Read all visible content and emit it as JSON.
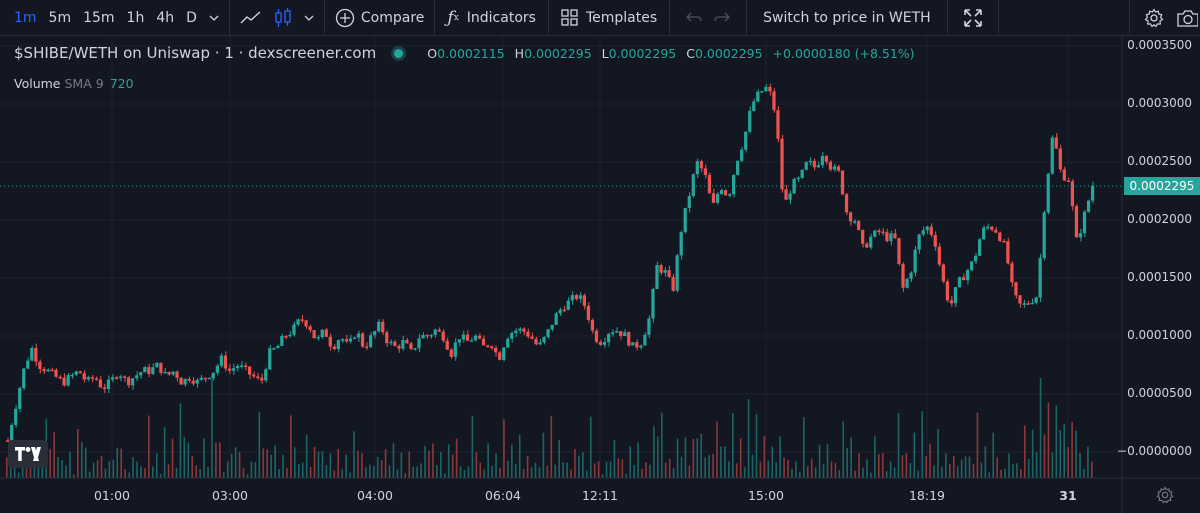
{
  "toolbar": {
    "intervals": [
      "1m",
      "5m",
      "15m",
      "1h",
      "4h",
      "D"
    ],
    "active_interval": "1m",
    "compare_label": "Compare",
    "indicators_label": "Indicators",
    "templates_label": "Templates",
    "switch_label": "Switch to price in WETH"
  },
  "legend": {
    "title": "$SHIBE/WETH on Uniswap · 1 · dexscreener.com",
    "o_key": "O",
    "o_val": "0.0002115",
    "h_key": "H",
    "h_val": "0.0002295",
    "l_key": "L",
    "l_val": "0.0002295",
    "c_key": "C",
    "c_val": "0.0002295",
    "change": "+0.0000180 (+8.51%)"
  },
  "volume": {
    "label": "Volume",
    "sma": "SMA 9",
    "value": "720"
  },
  "colors": {
    "up": "#26a69a",
    "down": "#ef5350",
    "background": "#131722",
    "grid": "#1e222d"
  },
  "chart_data": {
    "type": "candlestick",
    "title": "$SHIBE/WETH on Uniswap · 1 · dexscreener.com",
    "current_price": "0.0002295",
    "y_ticks": [
      "0.0003500",
      "0.0003000",
      "0.0002500",
      "0.0002000",
      "0.0001500",
      "0.0001000",
      "0.0000500",
      "−0.0000000"
    ],
    "x_ticks": [
      "01:00",
      "03:00",
      "04:00",
      "06:04",
      "12:11",
      "15:00",
      "18:19",
      "31"
    ],
    "ylim": [
      -1e-05,
      0.00036
    ],
    "close_series": [
      1e-05,
      4e-05,
      7e-05,
      9e-05,
      7.5e-05,
      7e-05,
      6.5e-05,
      6e-05,
      6.5e-05,
      7e-05,
      6e-05,
      6.5e-05,
      5.5e-05,
      6e-05,
      7e-05,
      6e-05,
      6.5e-05,
      7e-05,
      7e-05,
      7.5e-05,
      6.5e-05,
      7e-05,
      6e-05,
      6.5e-05,
      6e-05,
      6.5e-05,
      7e-05,
      8e-05,
      7e-05,
      7.5e-05,
      7e-05,
      6.5e-05,
      6e-05,
      8.5e-05,
      9e-05,
      0.0001,
      0.000105,
      0.000115,
      0.00011,
      9.5e-05,
      0.000105,
      9e-05,
      0.0001,
      9e-05,
      0.000105,
      9e-05,
      0.0001,
      0.00011,
      9.5e-05,
      9e-05,
      9.5e-05,
      8.5e-05,
      0.0001,
      0.0001,
      0.000105,
      0.0001,
      8.5e-05,
      0.0001,
      9.5e-05,
      0.0001,
      9e-05,
      9.5e-05,
      8e-05,
      0.0001,
      0.000105,
      0.000105,
      0.0001,
      9e-05,
      0.0001,
      0.000115,
      0.000125,
      0.00013,
      0.000135,
      0.000125,
      0.0001,
      9.5e-05,
      0.000105,
      0.000105,
      0.0001,
      9e-05,
      9.5e-05,
      0.000115,
      0.00016,
      0.000155,
      0.00014,
      0.00019,
      0.00022,
      0.00025,
      0.00024,
      0.00021,
      0.00023,
      0.00022,
      0.00025,
      0.00027,
      0.0003,
      0.00031,
      0.000315,
      0.00029,
      0.00021,
      0.00023,
      0.000235,
      0.00025,
      0.000245,
      0.00026,
      0.000245,
      0.00024,
      0.000205,
      0.0002,
      0.000175,
      0.000185,
      0.00019,
      0.000185,
      0.000185,
      0.00014,
      0.000155,
      0.000185,
      0.000195,
      0.000185,
      0.00015,
      0.000125,
      0.000145,
      0.000155,
      0.000165,
      0.00019,
      0.000195,
      0.00019,
      0.000175,
      0.000135,
      0.000125,
      0.00013,
      0.000135,
      0.00022,
      0.000275,
      0.00024,
      0.000235,
      0.00018,
      0.000205,
      0.0002295
    ],
    "volume_series": [
      0.4,
      0.3,
      0.6,
      0.2,
      0.3,
      0.5,
      0.4,
      0.3,
      0.2,
      0.6,
      0.3,
      0.4,
      0.2,
      0.3,
      0.5,
      0.2,
      0.4,
      0.3,
      0.6,
      0.2,
      0.5,
      0.3,
      0.7,
      0.4,
      0.2,
      0.3,
      0.8,
      0.3,
      0.4,
      0.5,
      0.2,
      0.3,
      0.6,
      0.4,
      0.3,
      0.2,
      0.5,
      0.3,
      0.4,
      0.6,
      0.3,
      0.2,
      0.4,
      0.3,
      0.5,
      0.2,
      0.3,
      0.4,
      0.6,
      0.3,
      0.2,
      0.4,
      0.3,
      0.5,
      0.3,
      0.2,
      0.4,
      0.3,
      0.2,
      0.5,
      0.3,
      0.4,
      0.2,
      0.6,
      0.3,
      0.4,
      0.2,
      0.3,
      0.4,
      0.5,
      0.3,
      0.2,
      0.4,
      0.3,
      0.5,
      0.2,
      0.3,
      0.4,
      0.2,
      0.5,
      0.3,
      0.4,
      1.0,
      0.5,
      0.4,
      0.8,
      0.6,
      0.7,
      0.5,
      0.4,
      0.6,
      0.3,
      0.5,
      0.4,
      0.6,
      0.5,
      0.4,
      0.3,
      0.5,
      0.4,
      0.3,
      0.5,
      0.4,
      0.3,
      0.4,
      0.3,
      0.5,
      0.4,
      0.3,
      0.2,
      0.4,
      0.3,
      0.2,
      0.5,
      0.3,
      0.4,
      0.6,
      0.3,
      0.4,
      0.3,
      0.2,
      0.4,
      0.3,
      0.6,
      0.3,
      0.4,
      0.2,
      0.5,
      0.3,
      0.4,
      0.5,
      1.0,
      0.6,
      0.8,
      0.5,
      1.0,
      0.4,
      0.3
    ]
  }
}
